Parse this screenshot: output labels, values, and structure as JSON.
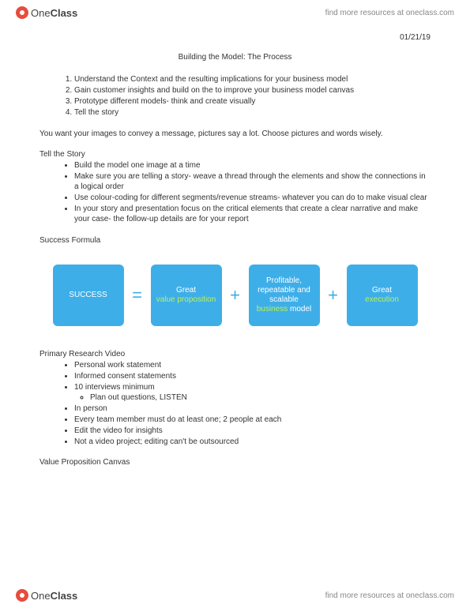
{
  "brand": {
    "name_light": "One",
    "name_bold": "Class",
    "tagline": "find more resources at oneclass.com"
  },
  "date": "01/21/19",
  "title": "Building the Model: The Process",
  "numbered": [
    "Understand the Context and the resulting implications for your business model",
    "Gain customer insights and build on the to improve your business model canvas",
    "Prototype different models- think and create visually",
    "Tell the story"
  ],
  "intro": "You want your images to convey a message, pictures say a lot. Choose pictures and words wisely.",
  "story_head": "Tell the Story",
  "story_items": [
    "Build the model one image at a time",
    "Make sure you are telling a story- weave a thread through the elements and show the connections in a logical order",
    "Use colour-coding for different segments/revenue streams- whatever you can do to make visual clear",
    "In your story and presentation focus on the critical elements that create a clear narrative and make your case- the follow-up details are for your report"
  ],
  "success_head": "Success Formula",
  "formula": {
    "box_bg": "#3eaee8",
    "accent_color": "#b6f25a",
    "op_color": "#3eaee8",
    "boxes": [
      {
        "white": "SUCCESS",
        "accent": ""
      },
      {
        "white": "Great",
        "accent": "value proposition"
      },
      {
        "white_top": "Profitable, repeatable and scalable",
        "accent_mid": "business",
        "white_bot": "model"
      },
      {
        "white": "Great",
        "accent": "execution"
      }
    ],
    "operators": [
      "=",
      "+",
      "+"
    ]
  },
  "research_head": "Primary Research Video",
  "research_items": [
    "Personal work statement",
    "Informed consent statements",
    "10 interviews minimum",
    "In person",
    "Every team member must do at least one; 2 people at each",
    "Edit the video for insights",
    "Not a video project; editing can't be outsourced"
  ],
  "research_sub": "Plan out questions, LISTEN",
  "vp_head": "Value Proposition Canvas"
}
